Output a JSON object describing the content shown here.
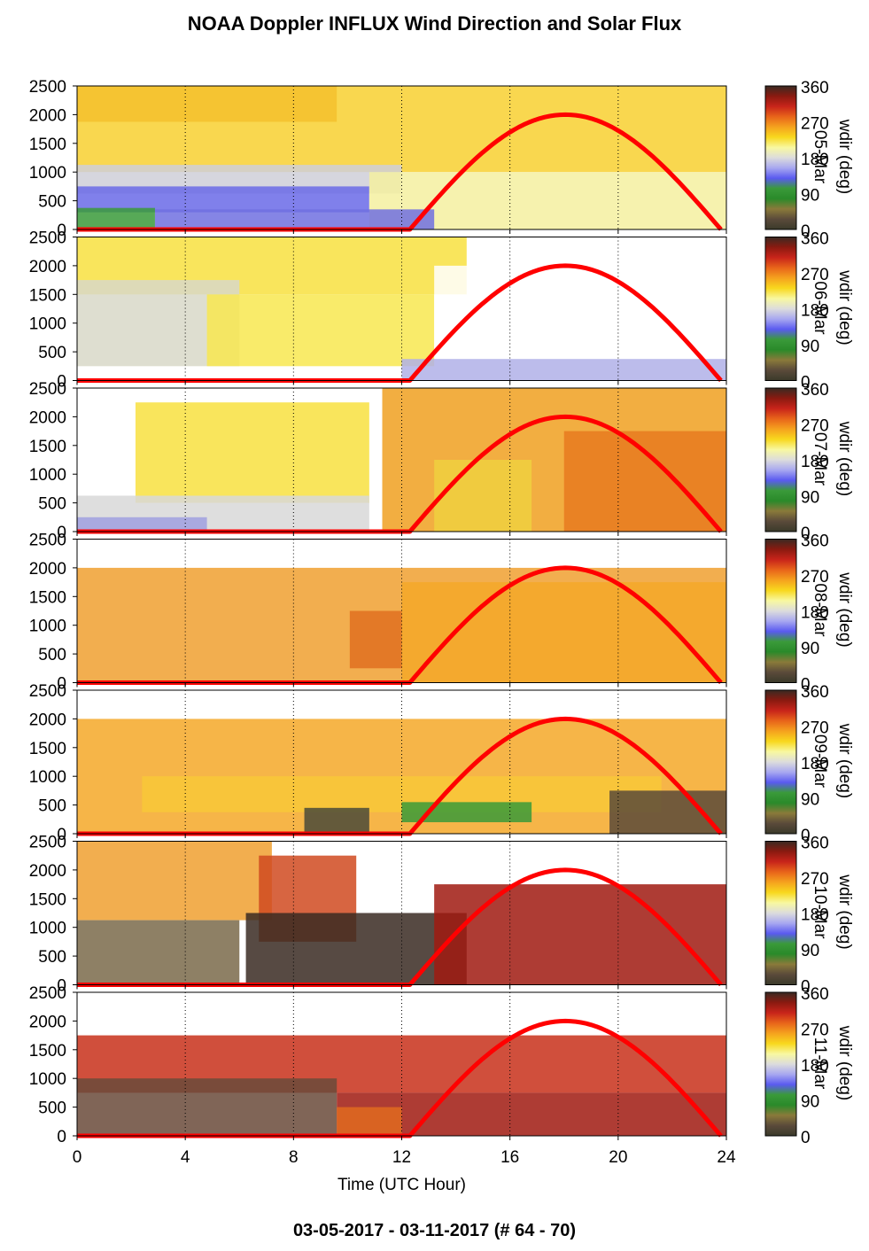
{
  "title": "NOAA Doppler INFLUX Wind Direction and Solar Flux",
  "footer": "03-05-2017 - 03-11-2017   (# 64 - 70)",
  "xlabel": "Time (UTC Hour)",
  "colorbar_label": "wdir (deg)",
  "colorbar_ticks": [
    "360",
    "270",
    "180",
    "90",
    "0"
  ],
  "colorbar_colors": [
    "#3a2a22",
    "#8a1a10",
    "#c8241a",
    "#e8641a",
    "#f5a21e",
    "#f8d81e",
    "#f8f8a0",
    "#dcdcdc",
    "#a8a8f0",
    "#5a5af0",
    "#3a9a3a",
    "#2a8a2a",
    "#8a7a3a",
    "#5a4a3a",
    "#3a3a2a"
  ],
  "series_color": "#ff0000",
  "chart_data": [
    {
      "type": "heatmap",
      "date_label": "05-Mar",
      "xlim": [
        0,
        24
      ],
      "ylim": [
        0,
        2500
      ],
      "xticks": [
        0,
        4,
        8,
        12,
        16,
        20,
        24
      ],
      "yticks": [
        0,
        500,
        1000,
        1500,
        2000,
        2500
      ],
      "solar_flux": {
        "x": [
          12.3,
          18,
          23.8
        ],
        "y": [
          0,
          2000,
          0
        ]
      }
    },
    {
      "type": "heatmap",
      "date_label": "06-Mar",
      "xlim": [
        0,
        24
      ],
      "ylim": [
        0,
        2500
      ],
      "xticks": [
        0,
        4,
        8,
        12,
        16,
        20,
        24
      ],
      "yticks": [
        0,
        500,
        1000,
        1500,
        2000,
        2500
      ],
      "solar_flux": {
        "x": [
          12.3,
          18,
          23.8
        ],
        "y": [
          0,
          2000,
          0
        ]
      }
    },
    {
      "type": "heatmap",
      "date_label": "07-Mar",
      "xlim": [
        0,
        24
      ],
      "ylim": [
        0,
        2500
      ],
      "xticks": [
        0,
        4,
        8,
        12,
        16,
        20,
        24
      ],
      "yticks": [
        0,
        500,
        1000,
        1500,
        2000,
        2500
      ],
      "solar_flux": {
        "x": [
          12.3,
          18,
          23.8
        ],
        "y": [
          0,
          2000,
          0
        ]
      }
    },
    {
      "type": "heatmap",
      "date_label": "08-Mar",
      "xlim": [
        0,
        24
      ],
      "ylim": [
        0,
        2500
      ],
      "xticks": [
        0,
        4,
        8,
        12,
        16,
        20,
        24
      ],
      "yticks": [
        0,
        500,
        1000,
        1500,
        2000,
        2500
      ],
      "solar_flux": {
        "x": [
          12.3,
          18,
          23.8
        ],
        "y": [
          0,
          2000,
          0
        ]
      }
    },
    {
      "type": "heatmap",
      "date_label": "09-Mar",
      "xlim": [
        0,
        24
      ],
      "ylim": [
        0,
        2500
      ],
      "xticks": [
        0,
        4,
        8,
        12,
        16,
        20,
        24
      ],
      "yticks": [
        0,
        500,
        1000,
        1500,
        2000,
        2500
      ],
      "solar_flux": {
        "x": [
          12.3,
          18,
          23.8
        ],
        "y": [
          0,
          2000,
          0
        ]
      }
    },
    {
      "type": "heatmap",
      "date_label": "10-Mar",
      "xlim": [
        0,
        24
      ],
      "ylim": [
        0,
        2500
      ],
      "xticks": [
        0,
        4,
        8,
        12,
        16,
        20,
        24
      ],
      "yticks": [
        0,
        500,
        1000,
        1500,
        2000,
        2500
      ],
      "solar_flux": {
        "x": [
          12.3,
          18,
          23.8
        ],
        "y": [
          0,
          2000,
          0
        ]
      }
    },
    {
      "type": "heatmap",
      "date_label": "11-Mar",
      "xlim": [
        0,
        24
      ],
      "ylim": [
        0,
        2500
      ],
      "xticks": [
        0,
        4,
        8,
        12,
        16,
        20,
        24
      ],
      "yticks": [
        0,
        500,
        1000,
        1500,
        2000,
        2500
      ],
      "solar_flux": {
        "x": [
          12.3,
          18,
          23.8
        ],
        "y": [
          0,
          2000,
          0
        ]
      }
    }
  ]
}
